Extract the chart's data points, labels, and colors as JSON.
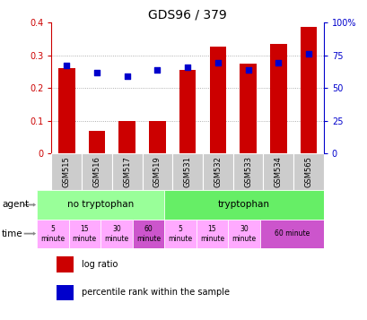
{
  "title": "GDS96 / 379",
  "samples": [
    "GSM515",
    "GSM516",
    "GSM517",
    "GSM519",
    "GSM531",
    "GSM532",
    "GSM533",
    "GSM534",
    "GSM565"
  ],
  "log_ratio": [
    0.26,
    0.07,
    0.1,
    0.1,
    0.255,
    0.325,
    0.275,
    0.335,
    0.385
  ],
  "pct_direct": [
    67,
    62,
    59,
    64,
    66,
    69,
    64,
    69,
    76
  ],
  "ylim_left": [
    0,
    0.4
  ],
  "ylim_right": [
    0,
    100
  ],
  "yticks_left": [
    0,
    0.1,
    0.2,
    0.3,
    0.4
  ],
  "yticks_right": [
    0,
    25,
    50,
    75,
    100
  ],
  "bar_color": "#cc0000",
  "dot_color": "#0000cc",
  "agent_no_tryp_color": "#99ff99",
  "agent_tryp_color": "#66ee66",
  "time_light_color": "#ffaaff",
  "time_dark_color": "#cc55cc",
  "sample_bg_color": "#cccccc",
  "agent_labels": [
    "no tryptophan",
    "tryptophan"
  ],
  "time_labels": [
    "5\nminute",
    "15\nminute",
    "30\nminute",
    "60\nminute",
    "5\nminute",
    "15\nminute",
    "30\nminute",
    "60 minute"
  ],
  "time_spans": [
    [
      0,
      1
    ],
    [
      1,
      2
    ],
    [
      2,
      3
    ],
    [
      3,
      4
    ],
    [
      4,
      5
    ],
    [
      5,
      6
    ],
    [
      6,
      7
    ],
    [
      7,
      9
    ]
  ],
  "time_colors": [
    "#ffaaff",
    "#ffaaff",
    "#ffaaff",
    "#cc55cc",
    "#ffaaff",
    "#ffaaff",
    "#ffaaff",
    "#cc55cc"
  ],
  "legend_red": "log ratio",
  "legend_blue": "percentile rank within the sample",
  "xlim": [
    -0.5,
    8.5
  ]
}
